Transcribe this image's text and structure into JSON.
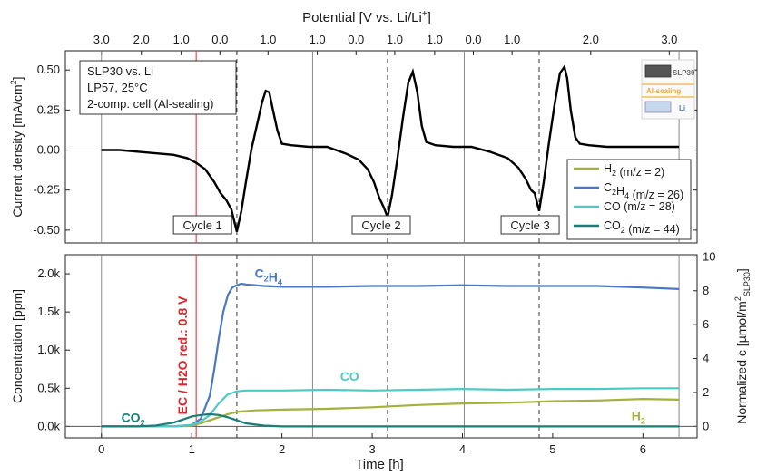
{
  "chart_data": {
    "type": "line",
    "top_axis": {
      "title": "Potential [V vs. Li/Li",
      "title_sup": "+",
      "title_close": "]",
      "ticks": [
        {
          "t": 0.0,
          "label": "3.0"
        },
        {
          "t": 0.34,
          "label": "2.0"
        },
        {
          "t": 0.68,
          "label": "1.0"
        },
        {
          "t": 1.01,
          "label": "0.0"
        },
        {
          "t": 1.42,
          "label": "1.0"
        },
        {
          "t": 1.84,
          "label": "1.0"
        },
        {
          "t": 2.17,
          "label": "0.0"
        },
        {
          "t": 2.5,
          "label": "1.0"
        },
        {
          "t": 2.84,
          "label": "1.0"
        },
        {
          "t": 3.17,
          "label": "0.0"
        },
        {
          "t": 3.5,
          "label": "1.0"
        },
        {
          "t": 4.17,
          "label": "2.0"
        },
        {
          "t": 4.84,
          "label": "3.0"
        }
      ]
    },
    "x_axis": {
      "label": "Time [h]",
      "range": [
        -0.4,
        6.6
      ],
      "ticks": [
        0,
        1,
        2,
        3,
        4,
        5,
        6
      ]
    },
    "current_panel": {
      "ylabel": "Current density [mA/cm",
      "ylabel_sup": "2",
      "ylabel_close": "]",
      "ylim": [
        -0.58,
        0.62
      ],
      "yticks": [
        "0.50",
        "0.25",
        "0.00",
        "-0.25",
        "-0.50"
      ],
      "ytick_values": [
        0.5,
        0.25,
        0.0,
        -0.25,
        -0.5
      ],
      "info_lines": [
        "SLP30 vs. Li",
        "LP57, 25°C",
        "2-comp. cell (Al-sealing)"
      ],
      "cell_labels": [
        "SLP30",
        "Al-sealing",
        "Li"
      ],
      "cycle_labels": [
        {
          "t": 1.12,
          "text": "Cycle 1"
        },
        {
          "t": 3.1,
          "text": "Cycle 2"
        },
        {
          "t": 4.75,
          "text": "Cycle 3"
        }
      ],
      "series": {
        "name": "Current density",
        "color": "#000000",
        "x": [
          0.0,
          0.2,
          0.4,
          0.6,
          0.8,
          0.95,
          1.05,
          1.15,
          1.25,
          1.32,
          1.38,
          1.44,
          1.5,
          1.55,
          1.6,
          1.66,
          1.72,
          1.78,
          1.82,
          1.86,
          1.9,
          1.95,
          2.0,
          2.1,
          2.3,
          2.5,
          2.7,
          2.85,
          2.95,
          3.02,
          3.08,
          3.13,
          3.17,
          3.22,
          3.28,
          3.34,
          3.4,
          3.45,
          3.5,
          3.55,
          3.6,
          3.7,
          3.9,
          4.1,
          4.3,
          4.5,
          4.62,
          4.7,
          4.76,
          4.8,
          4.85,
          4.9,
          4.96,
          5.02,
          5.08,
          5.13,
          5.16,
          5.2,
          5.25,
          5.3,
          5.4,
          5.6,
          6.0,
          6.4
        ],
        "y": [
          0.0,
          0.0,
          -0.01,
          -0.02,
          -0.03,
          -0.05,
          -0.08,
          -0.12,
          -0.2,
          -0.27,
          -0.31,
          -0.37,
          -0.51,
          -0.38,
          -0.2,
          0.0,
          0.15,
          0.3,
          0.37,
          0.36,
          0.25,
          0.12,
          0.04,
          0.03,
          0.02,
          0.02,
          -0.02,
          -0.06,
          -0.12,
          -0.2,
          -0.3,
          -0.36,
          -0.42,
          -0.28,
          -0.05,
          0.2,
          0.42,
          0.49,
          0.36,
          0.15,
          0.05,
          0.03,
          0.02,
          0.02,
          -0.01,
          -0.05,
          -0.11,
          -0.18,
          -0.25,
          -0.27,
          -0.38,
          -0.2,
          0.05,
          0.28,
          0.48,
          0.52,
          0.45,
          0.25,
          0.08,
          0.04,
          0.03,
          0.02,
          0.02,
          0.02
        ]
      }
    },
    "gas_panel": {
      "ylabel": "Concentration [ppm]",
      "ylim": [
        -0.15,
        2.25
      ],
      "yticks": [
        "2.0k",
        "1.5k",
        "1.0k",
        "0.5k",
        "0.0k"
      ],
      "ytick_values": [
        2.0,
        1.5,
        1.0,
        0.5,
        0.0
      ],
      "ylabel_right": "Normalized c [µmol/m",
      "ylabel_right_sup": "2",
      "ylabel_right_sub": "SLP30",
      "ylabel_right_close": "]",
      "yticks_right": [
        "0",
        "2",
        "4",
        "6",
        "8",
        "10"
      ],
      "yticks_right_values": [
        0,
        2,
        4,
        6,
        8,
        10
      ],
      "right_scale_ppm_per_unit": 0.2222,
      "annotation": "EC / H2O red.: 0.8 V",
      "annotation_t": 1.05,
      "series": [
        {
          "name": "H2 (m/z = 2)",
          "short": "H2",
          "label_t": 5.95,
          "label_y": 0.08,
          "color": "#a4b13c",
          "x": [
            0.0,
            0.8,
            1.0,
            1.1,
            1.2,
            1.3,
            1.4,
            1.5,
            1.7,
            2.0,
            2.5,
            3.0,
            3.5,
            4.0,
            4.5,
            5.0,
            5.5,
            6.0,
            6.4
          ],
          "y": [
            0.0,
            0.0,
            0.01,
            0.04,
            0.08,
            0.12,
            0.16,
            0.19,
            0.21,
            0.22,
            0.23,
            0.25,
            0.28,
            0.3,
            0.31,
            0.33,
            0.34,
            0.36,
            0.35
          ]
        },
        {
          "name": "C2H4 (m/z = 26)",
          "short": "C2H4",
          "label_t": 1.85,
          "label_y": 1.95,
          "color": "#4a78c2",
          "x": [
            0.0,
            0.8,
            1.0,
            1.1,
            1.2,
            1.25,
            1.3,
            1.35,
            1.4,
            1.45,
            1.5,
            1.55,
            1.6,
            1.8,
            2.0,
            2.5,
            3.0,
            3.5,
            4.0,
            4.5,
            5.0,
            5.5,
            6.0,
            6.4
          ],
          "y": [
            0.0,
            0.0,
            0.02,
            0.1,
            0.4,
            0.75,
            1.15,
            1.5,
            1.72,
            1.82,
            1.85,
            1.87,
            1.86,
            1.84,
            1.83,
            1.83,
            1.84,
            1.84,
            1.85,
            1.84,
            1.84,
            1.84,
            1.82,
            1.8
          ]
        },
        {
          "name": "CO (m/z = 28)",
          "short": "CO",
          "label_t": 2.75,
          "label_y": 0.6,
          "color": "#4ec9c6",
          "x": [
            0.0,
            0.8,
            1.0,
            1.1,
            1.2,
            1.3,
            1.4,
            1.5,
            1.6,
            2.0,
            2.5,
            3.0,
            3.5,
            4.0,
            4.5,
            5.0,
            5.5,
            6.0,
            6.4
          ],
          "y": [
            0.0,
            0.0,
            0.02,
            0.06,
            0.15,
            0.3,
            0.42,
            0.46,
            0.47,
            0.47,
            0.48,
            0.47,
            0.48,
            0.49,
            0.48,
            0.49,
            0.49,
            0.5,
            0.5
          ]
        },
        {
          "name": "CO2 (m/z = 44)",
          "short": "CO2",
          "label_t": 0.35,
          "label_y": 0.06,
          "color": "#1a7e78",
          "x": [
            0.0,
            0.4,
            0.6,
            0.8,
            0.9,
            1.0,
            1.1,
            1.2,
            1.3,
            1.4,
            1.5,
            1.6,
            1.8,
            2.0,
            3.0,
            4.0,
            5.0,
            6.4
          ],
          "y": [
            0.0,
            0.0,
            0.01,
            0.05,
            0.09,
            0.13,
            0.15,
            0.16,
            0.15,
            0.12,
            0.08,
            0.04,
            0.01,
            0.0,
            0.0,
            0.0,
            0.0,
            0.0
          ]
        }
      ]
    },
    "legend_placement": "center-right",
    "vertical_lines_solid": [
      0.0,
      2.34,
      4.02,
      6.4
    ],
    "vertical_lines_dashed": [
      1.5,
      3.17,
      4.85
    ],
    "red_line_t": 1.05
  }
}
